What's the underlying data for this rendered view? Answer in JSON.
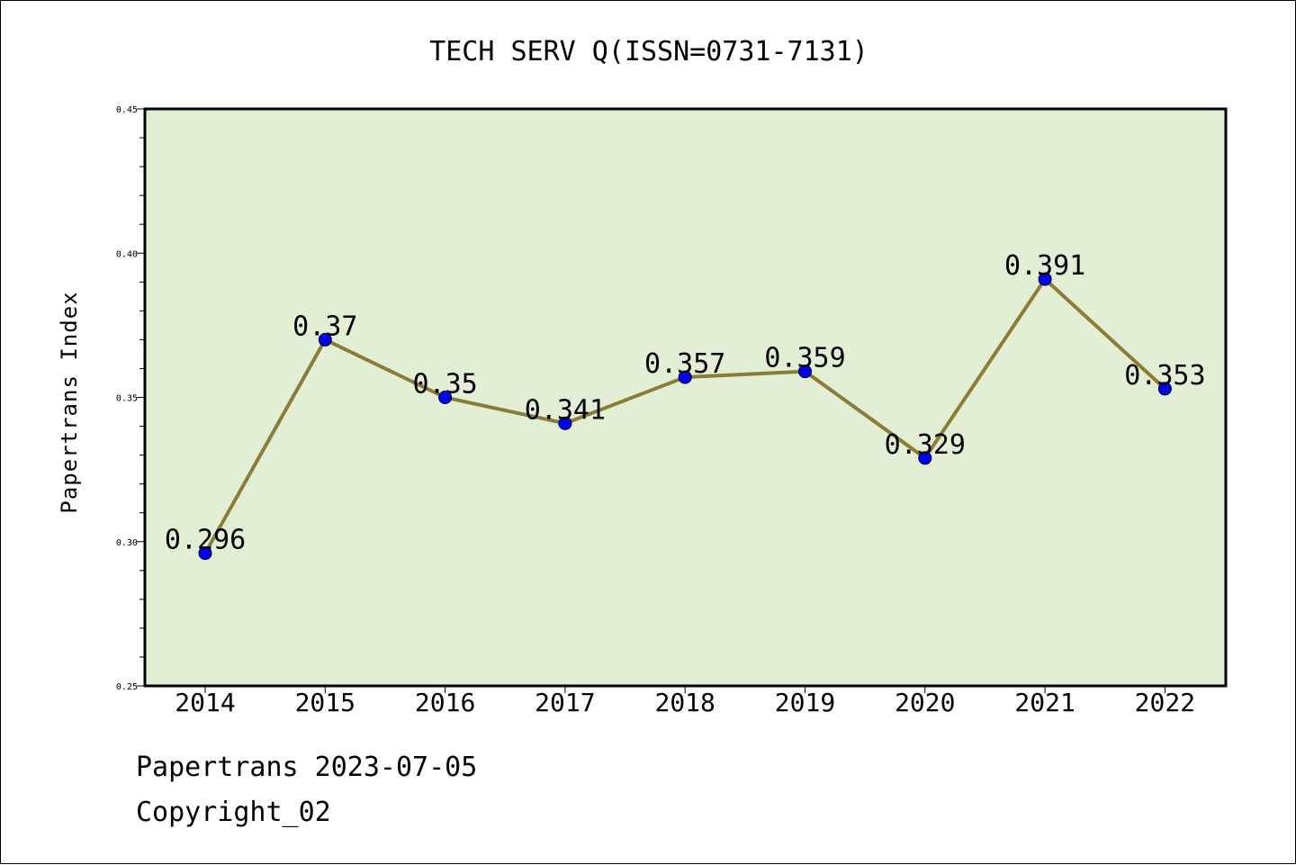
{
  "footer": {
    "line1": "Papertrans 2023-07-05",
    "line2": "Copyright_02"
  },
  "chart_data": {
    "type": "line",
    "title": "TECH SERV Q(ISSN=0731-7131)",
    "xlabel": "",
    "ylabel": "Papertrans Index",
    "categories": [
      "2014",
      "2015",
      "2016",
      "2017",
      "2018",
      "2019",
      "2020",
      "2021",
      "2022"
    ],
    "series": [
      {
        "values": [
          0.296,
          0.37,
          0.35,
          0.341,
          0.357,
          0.359,
          0.329,
          0.391,
          0.353
        ],
        "labels": [
          "0.296",
          "0.37",
          "0.35",
          "0.341",
          "0.357",
          "0.359",
          "0.329",
          "0.391",
          "0.353"
        ]
      }
    ],
    "ylim": [
      0.25,
      0.45
    ],
    "yticks": [
      "0.25",
      "0.30",
      "0.35",
      "0.40",
      "0.45"
    ],
    "grid": false,
    "legend": "none",
    "colors": {
      "plot_background": "#e2efd5",
      "line": "#8b7d35",
      "marker": "#0000ff",
      "frame": "#000000"
    }
  }
}
